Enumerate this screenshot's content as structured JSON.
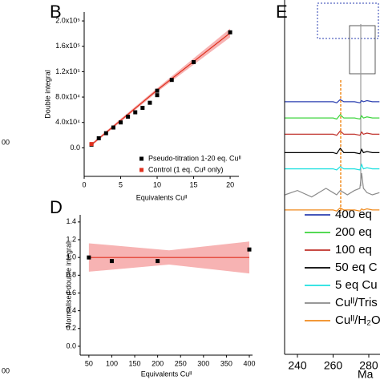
{
  "cropped_labels": [
    "00",
    "00"
  ],
  "chart_data": [
    {
      "type": "scatter",
      "panel": "B",
      "xlabel": "Equivalents Cuᴵᴵ",
      "ylabel": "Double integral",
      "xlim": [
        0,
        21.2
      ],
      "ylim": [
        -45000,
        214000
      ],
      "xticks": [
        0,
        5,
        10,
        15,
        20
      ],
      "yticks": [
        {
          "value": 0,
          "label": "0.0"
        },
        {
          "value": 40000,
          "label": "4.0x10⁴"
        },
        {
          "value": 80000,
          "label": "8.0x10⁴"
        },
        {
          "value": 120000,
          "label": "1.2x10⁵"
        },
        {
          "value": 160000,
          "label": "1.6x10⁵"
        },
        {
          "value": 200000,
          "label": "2.0x10⁵"
        }
      ],
      "series": [
        {
          "name": "Pseudo-titration 1-20 eq. Cuᴵᴵ",
          "color": "#000000",
          "x": [
            1,
            2,
            3,
            4,
            5,
            6,
            7,
            8,
            9,
            10,
            10,
            12,
            15,
            20
          ],
          "values": [
            5000,
            15000,
            23000,
            32000,
            40000,
            49000,
            56000,
            63000,
            71000,
            83000,
            90000,
            107000,
            135000,
            182000
          ]
        },
        {
          "name": "Control (1 eq. Cuᴵᴵ only)",
          "color": "#e0301e",
          "x": [
            1
          ],
          "values": [
            6000
          ]
        }
      ],
      "fit": {
        "color": "#e0301e",
        "band_color": "#f7b3b3",
        "x": [
          1,
          10,
          20
        ],
        "values": [
          5000,
          91000,
          181000
        ],
        "lower": [
          3000,
          88000,
          174000
        ],
        "upper": [
          7000,
          94000,
          188000
        ]
      }
    },
    {
      "type": "scatter",
      "panel": "D",
      "xlabel": "Equivalents Cuᴵᴵ",
      "ylabel": "Normalised double integral",
      "xlim": [
        31,
        407
      ],
      "ylim": [
        -0.1,
        1.48
      ],
      "xticks": [
        50,
        100,
        150,
        200,
        250,
        300,
        350,
        400
      ],
      "yticks": [
        {
          "value": 0,
          "label": "0.0"
        },
        {
          "value": 0.2,
          "label": "0.2"
        },
        {
          "value": 0.4,
          "label": "0.4"
        },
        {
          "value": 0.6,
          "label": "0.6"
        },
        {
          "value": 0.8,
          "label": "0.8"
        },
        {
          "value": 1,
          "label": "1.0"
        },
        {
          "value": 1.2,
          "label": "1.2"
        },
        {
          "value": 1.4,
          "label": "1.4"
        }
      ],
      "color": "#000000",
      "x": [
        50,
        100,
        200,
        400
      ],
      "values": [
        1.0,
        0.96,
        0.96,
        1.09
      ],
      "fit": {
        "color": "#e0301e",
        "band_color": "#f7b3b3",
        "x": [
          50,
          225,
          400
        ],
        "values": [
          1,
          1,
          1
        ],
        "lower": [
          0.84,
          0.92,
          0.82
        ],
        "upper": [
          1.16,
          1.08,
          1.18
        ]
      }
    },
    {
      "type": "line",
      "panel": "E",
      "xlabel": "Ma",
      "xlim": [
        232.8,
        286.3
      ],
      "ylim": [
        0,
        100
      ],
      "xticks": [
        240,
        260,
        280
      ],
      "x": [
        233,
        240,
        248,
        256,
        260,
        262,
        264,
        266,
        268,
        272,
        275,
        276,
        277,
        279,
        282,
        286
      ],
      "series": [
        {
          "name": "400 eq",
          "color": "#2b3fb0",
          "values": [
            53,
            53,
            53,
            53,
            53,
            52.5,
            54,
            53,
            53,
            53,
            52.5,
            53.5,
            53,
            53.5,
            53,
            53
          ]
        },
        {
          "name": "200 eq",
          "color": "#3cd43c",
          "values": [
            45.5,
            45.5,
            45.5,
            45.5,
            45.5,
            45,
            47,
            45.5,
            45.5,
            45.5,
            45,
            46.5,
            45.5,
            46,
            45.5,
            45.5
          ]
        },
        {
          "name": "100 eq",
          "color": "#c0302a",
          "values": [
            38,
            38,
            38,
            38,
            38,
            37.5,
            39.5,
            38,
            38,
            38,
            37.5,
            39,
            38,
            38.5,
            38,
            38
          ]
        },
        {
          "name": "50 eq C",
          "color": "#000000",
          "values": [
            29.5,
            29.5,
            29.5,
            29.5,
            29.5,
            29,
            31.5,
            29.5,
            29.5,
            29.5,
            29,
            31,
            29.5,
            30,
            29.5,
            29.5
          ]
        },
        {
          "name": "5 eq Cu",
          "color": "#1ee0e0",
          "values": [
            22,
            22,
            22,
            22,
            22,
            21.5,
            23,
            22,
            22,
            22,
            21.5,
            24,
            22,
            22.5,
            22,
            22
          ]
        },
        {
          "name": "Cuᴵᴵ/Tris",
          "color": "#8a8a8a",
          "values": [
            10,
            12,
            9,
            13,
            11,
            10,
            12,
            11,
            10,
            12,
            13,
            20,
            13,
            11,
            10,
            11
          ]
        },
        {
          "name": "Cuᴵᴵ/H₂O",
          "color": "#f08a1c",
          "values": [
            3,
            3,
            3,
            3,
            3,
            2.5,
            4,
            3,
            3,
            3,
            2.5,
            3.5,
            3,
            3.5,
            3,
            3
          ]
        }
      ]
    }
  ]
}
